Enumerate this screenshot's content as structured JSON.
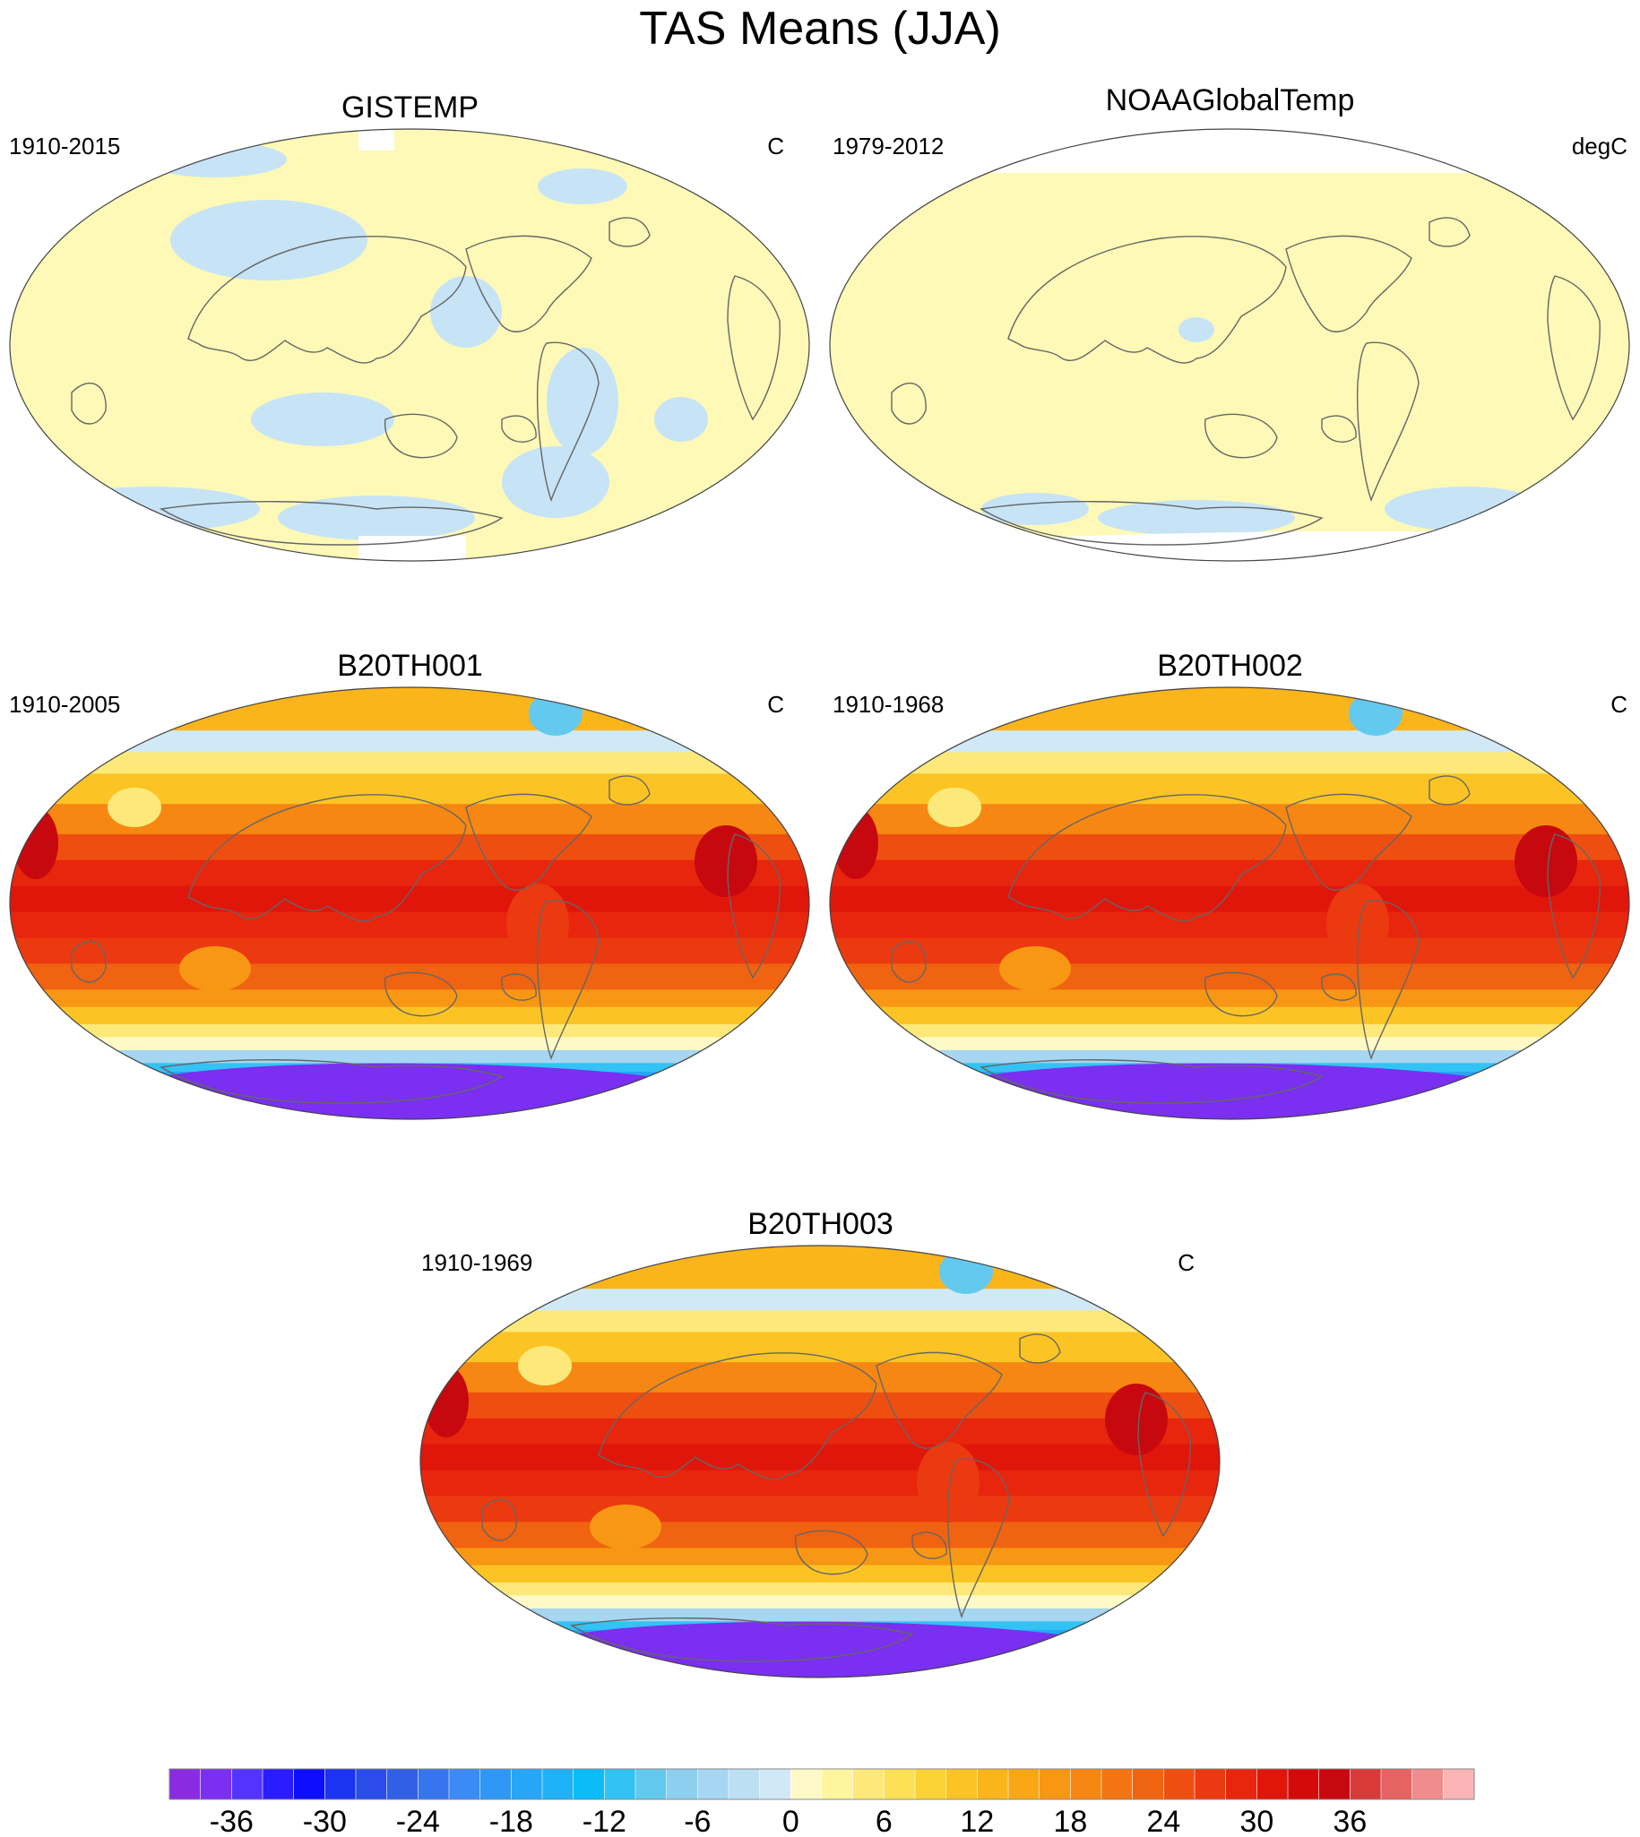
{
  "title": "TAS Means (JJA)",
  "palette": {
    "obs_fill": "#fef9b6",
    "obs_below": "#c6e4f6",
    "missing": "#ffffff",
    "coast": "#666666",
    "border": "#444444"
  },
  "panels": [
    {
      "id": "gistemp",
      "title": "GISTEMP",
      "period": "1910-2015",
      "units": "C",
      "kind": "obs"
    },
    {
      "id": "noaa",
      "title": "NOAAGlobalTemp",
      "period": "1979-2012",
      "units": "degC",
      "kind": "obs"
    },
    {
      "id": "b20th001",
      "title": "B20TH001",
      "period": "1910-2005",
      "units": "C",
      "kind": "model"
    },
    {
      "id": "b20th002",
      "title": "B20TH002",
      "period": "1910-1968",
      "units": "C",
      "kind": "model"
    },
    {
      "id": "b20th003",
      "title": "B20TH003",
      "period": "1910-1969",
      "units": "C",
      "kind": "model"
    }
  ],
  "colorbar": {
    "tick_labels": [
      "-36",
      "-30",
      "-24",
      "-18",
      "-12",
      "-6",
      "0",
      "6",
      "12",
      "18",
      "24",
      "30",
      "36"
    ],
    "tick_values": [
      -36,
      -30,
      -24,
      -18,
      -12,
      -6,
      0,
      6,
      12,
      18,
      24,
      30,
      36
    ],
    "levels": [
      -40,
      -38,
      -36,
      -34,
      -32,
      -30,
      -28,
      -26,
      -24,
      -22,
      -20,
      -18,
      -16,
      -14,
      -12,
      -10,
      -8,
      -6,
      -4,
      -2,
      0,
      2,
      4,
      6,
      8,
      10,
      12,
      14,
      16,
      18,
      20,
      22,
      24,
      26,
      28,
      30,
      32,
      34,
      36,
      38,
      40,
      42
    ],
    "colors": [
      "#8a2be2",
      "#7b2ff0",
      "#5533ff",
      "#2a1cff",
      "#0d0dff",
      "#1a34f2",
      "#2a4ce8",
      "#3160e6",
      "#3675ee",
      "#3c8af5",
      "#2f98f7",
      "#27a6f8",
      "#1fb2f8",
      "#0bbcf8",
      "#33c2f4",
      "#63c9ef",
      "#8ecff0",
      "#a6d6f1",
      "#bcdff4",
      "#d1e9f6",
      "#fefac8",
      "#fef59e",
      "#fde97a",
      "#fde055",
      "#fcd334",
      "#fbc424",
      "#fab51b",
      "#f9a716",
      "#f89713",
      "#f68712",
      "#f37512",
      "#f06311",
      "#ee4f10",
      "#eb3a0f",
      "#e8250d",
      "#e0160b",
      "#d40a0a",
      "#c7080f",
      "#d83a3a",
      "#e66363",
      "#f08c8c",
      "#fbb5b5"
    ]
  }
}
